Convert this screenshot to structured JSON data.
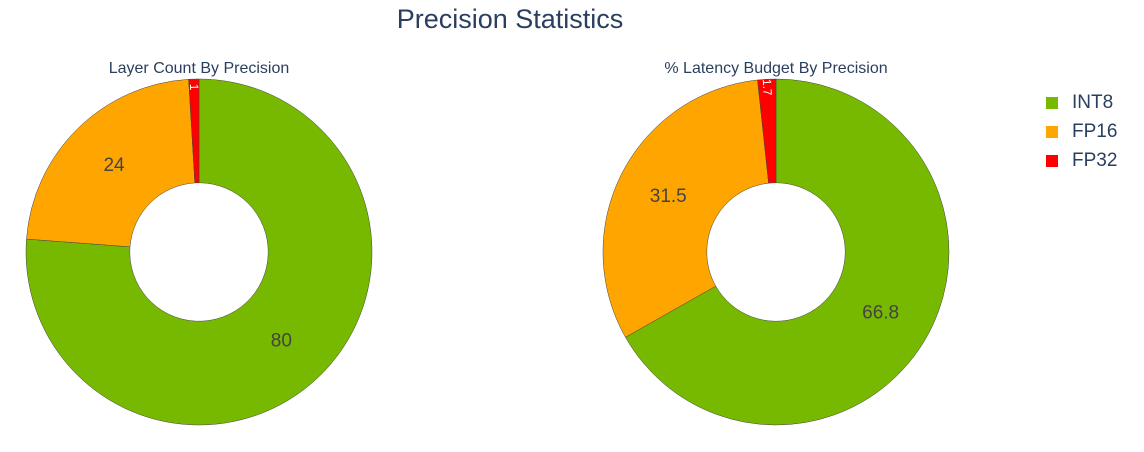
{
  "title": "Precision Statistics",
  "colors": {
    "INT8": "#76b900",
    "FP16": "#ffa500",
    "FP32": "#ff0000",
    "label_dark": "#444444",
    "label_light": "#ffffff"
  },
  "legend": [
    "INT8",
    "FP16",
    "FP32"
  ],
  "chart_data": [
    {
      "type": "pie",
      "hole": 0.4,
      "title": "Layer Count By Precision",
      "labels": [
        "INT8",
        "FP16",
        "FP32"
      ],
      "values": [
        80,
        24,
        1
      ],
      "text": [
        "80",
        "24",
        "1"
      ]
    },
    {
      "type": "pie",
      "hole": 0.4,
      "title": "% Latency Budget By Precision",
      "labels": [
        "INT8",
        "FP16",
        "FP32"
      ],
      "values": [
        66.8,
        31.5,
        1.7
      ],
      "text": [
        "66.8",
        "31.5",
        "1.7"
      ]
    }
  ]
}
